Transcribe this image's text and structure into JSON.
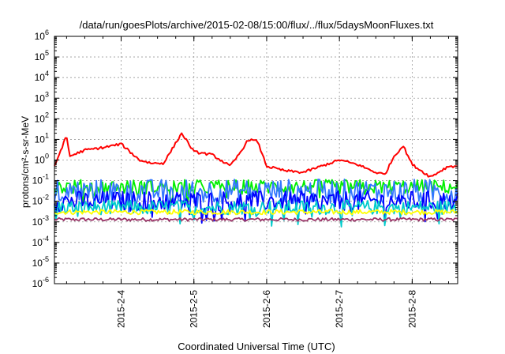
{
  "chart_data": {
    "type": "line",
    "title": "/data/run/goesPlots/archive/2015-02-08/15:00/flux/../flux/5daysMoonFluxes.txt",
    "xlabel": "Coordinated Universal Time (UTC)",
    "ylabel": "protons/cm²-s-sr-MeV",
    "yscale": "log",
    "ylim": [
      1e-06,
      1000000.0
    ],
    "xlim": [
      "2015-02-03 02:00",
      "2015-02-08 15:00"
    ],
    "grid": true,
    "x_tick_labels": [
      {
        "date": "2015-02-04",
        "label": "2015-2-4"
      },
      {
        "date": "2015-02-05",
        "label": "2015-2-5"
      },
      {
        "date": "2015-02-06",
        "label": "2015-2-6"
      },
      {
        "date": "2015-02-07",
        "label": "2015-2-7"
      },
      {
        "date": "2015-02-08",
        "label": "2015-2-8"
      }
    ],
    "y_ticks": [
      {
        "value": 1e-06,
        "mantissa": "10",
        "exp": "-6"
      },
      {
        "value": 1e-05,
        "mantissa": "10",
        "exp": "-5"
      },
      {
        "value": 0.0001,
        "mantissa": "10",
        "exp": "-4"
      },
      {
        "value": 0.001,
        "mantissa": "10",
        "exp": "-3"
      },
      {
        "value": 0.01,
        "mantissa": "10",
        "exp": "-2"
      },
      {
        "value": 0.1,
        "mantissa": "10",
        "exp": "-1"
      },
      {
        "value": 1.0,
        "mantissa": "10",
        "exp": "0"
      },
      {
        "value": 10.0,
        "mantissa": "10",
        "exp": "1"
      },
      {
        "value": 100.0,
        "mantissa": "10",
        "exp": "2"
      },
      {
        "value": 1000.0,
        "mantissa": "10",
        "exp": "3"
      },
      {
        "value": 10000.0,
        "mantissa": "10",
        "exp": "4"
      },
      {
        "value": 100000.0,
        "mantissa": "10",
        "exp": "5"
      },
      {
        "value": 1000000.0,
        "mantissa": "10",
        "exp": "6"
      }
    ],
    "series": [
      {
        "color": "#ff0000",
        "x": [
          "2015-02-03 02:00",
          "2015-02-03 06:00",
          "2015-02-03 07:00",
          "2015-02-03 09:00",
          "2015-02-03 12:00",
          "2015-02-03 18:00",
          "2015-02-04 00:00",
          "2015-02-04 06:00",
          "2015-02-04 10:00",
          "2015-02-04 14:00",
          "2015-02-04 20:00",
          "2015-02-05 00:00",
          "2015-02-05 06:00",
          "2015-02-05 12:00",
          "2015-02-05 15:00",
          "2015-02-05 18:00",
          "2015-02-05 21:00",
          "2015-02-06 00:00",
          "2015-02-06 06:00",
          "2015-02-06 12:00",
          "2015-02-06 18:00",
          "2015-02-07 00:00",
          "2015-02-07 06:00",
          "2015-02-07 12:00",
          "2015-02-07 15:00",
          "2015-02-07 18:00",
          "2015-02-07 21:00",
          "2015-02-08 00:00",
          "2015-02-08 06:00",
          "2015-02-08 12:00",
          "2015-02-08 15:00"
        ],
        "values": [
          0.5,
          15,
          1.5,
          2,
          3,
          4,
          6,
          1,
          0.7,
          0.7,
          20,
          2.5,
          1.8,
          0.5,
          2,
          10,
          8,
          0.5,
          0.3,
          0.25,
          0.5,
          1,
          0.6,
          0.25,
          0.2,
          1.5,
          5,
          0.6,
          0.15,
          0.5,
          0.5
        ]
      },
      {
        "color": "#00ee00",
        "x": [
          "2015-02-03 02:00",
          "2015-02-08 15:00"
        ],
        "values": [
          0.05,
          0.05
        ]
      },
      {
        "color": "#3377ff",
        "x": [
          "2015-02-03 02:00",
          "2015-02-08 15:00"
        ],
        "values": [
          0.03,
          0.03
        ]
      },
      {
        "color": "#0000ff",
        "x": [
          "2015-02-03 02:00",
          "2015-02-08 15:00"
        ],
        "values": [
          0.01,
          0.01
        ]
      },
      {
        "color": "#00cccc",
        "x": [
          "2015-02-03 02:00",
          "2015-02-08 15:00"
        ],
        "values": [
          0.005,
          0.005
        ]
      },
      {
        "color": "#ffff00",
        "x": [
          "2015-02-03 02:00",
          "2015-02-08 15:00"
        ],
        "values": [
          0.003,
          0.003
        ]
      },
      {
        "color": "#993366",
        "x": [
          "2015-02-03 02:00",
          "2015-02-08 15:00"
        ],
        "values": [
          0.0013,
          0.0013
        ]
      }
    ]
  }
}
